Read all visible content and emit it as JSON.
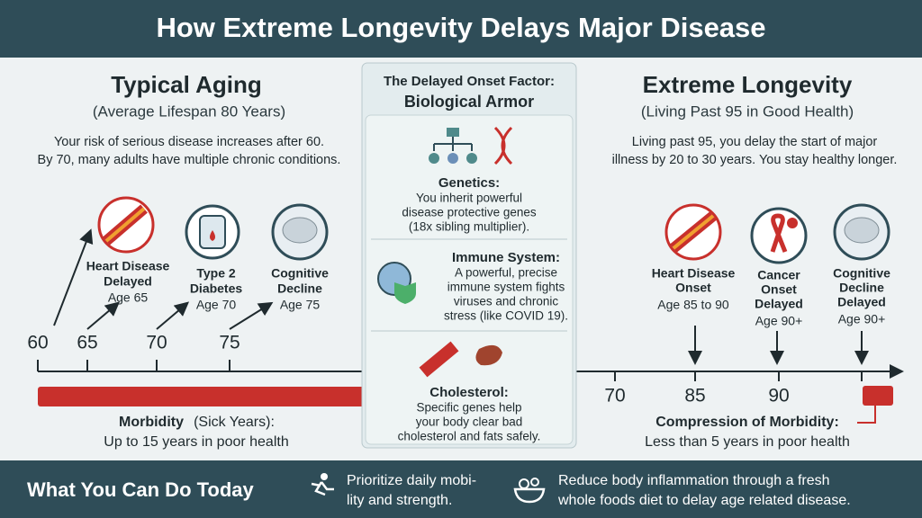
{
  "header": {
    "title": "How Extreme Longevity Delays Major Disease"
  },
  "typical": {
    "heading": "Typical Aging",
    "subheading": "(Average Lifespan 80 Years)",
    "description": [
      "Your risk of serious disease increases after 60.",
      "By 70, many adults have multiple chronic conditions."
    ],
    "ticks": [
      "60",
      "65",
      "70",
      "75"
    ],
    "events": [
      {
        "label": [
          "Heart Disease",
          "Delayed"
        ],
        "age": "Age 65"
      },
      {
        "label": [
          "Type 2",
          "Diabetes"
        ],
        "age": "Age 70"
      },
      {
        "label": [
          "Cognitive",
          "Decline"
        ],
        "age": "Age 75"
      }
    ],
    "morbidity": {
      "term": "Morbidity",
      "term_note": "(Sick Years):",
      "text": "Up to 15 years in poor health"
    }
  },
  "center": {
    "heading": "The Delayed Onset Factor:",
    "subheading": "Biological Armor",
    "items": [
      {
        "title": "Genetics:",
        "lines": [
          "You inherit powerful",
          "disease protective genes",
          "(18x sibling multiplier)."
        ]
      },
      {
        "title": "Immune System:",
        "lines": [
          "A powerful, precise",
          "immune system fights",
          "viruses and chronic",
          "stress (like COVID 19)."
        ]
      },
      {
        "title": "Cholesterol:",
        "lines": [
          "Specific genes help",
          "your body clear bad",
          "cholesterol and fats safely."
        ]
      }
    ]
  },
  "extreme": {
    "heading": "Extreme Longevity",
    "subheading": "(Living Past 95 in Good Health)",
    "description": [
      "Living past 95, you delay the start of major",
      "illness by 20 to 30 years. You stay healthy longer."
    ],
    "ticks": [
      "70",
      "85",
      "90"
    ],
    "events": [
      {
        "label": [
          "Heart Disease",
          "Onset"
        ],
        "age": "Age 85 to 90"
      },
      {
        "label": [
          "Cancer",
          "Onset",
          "Delayed"
        ],
        "age": "Age 90+"
      },
      {
        "label": [
          "Cognitive",
          "Decline",
          "Delayed"
        ],
        "age": "Age 90+"
      }
    ],
    "morbidity": {
      "term": "Compression of Morbidity:",
      "text": "Less than 5 years in poor health"
    }
  },
  "footer": {
    "title": "What You Can Do Today",
    "tips": [
      [
        "Prioritize daily mobi-",
        "lity and strength."
      ],
      [
        "Reduce body inflammation through a fresh",
        "whole foods diet to delay age related disease."
      ]
    ]
  }
}
